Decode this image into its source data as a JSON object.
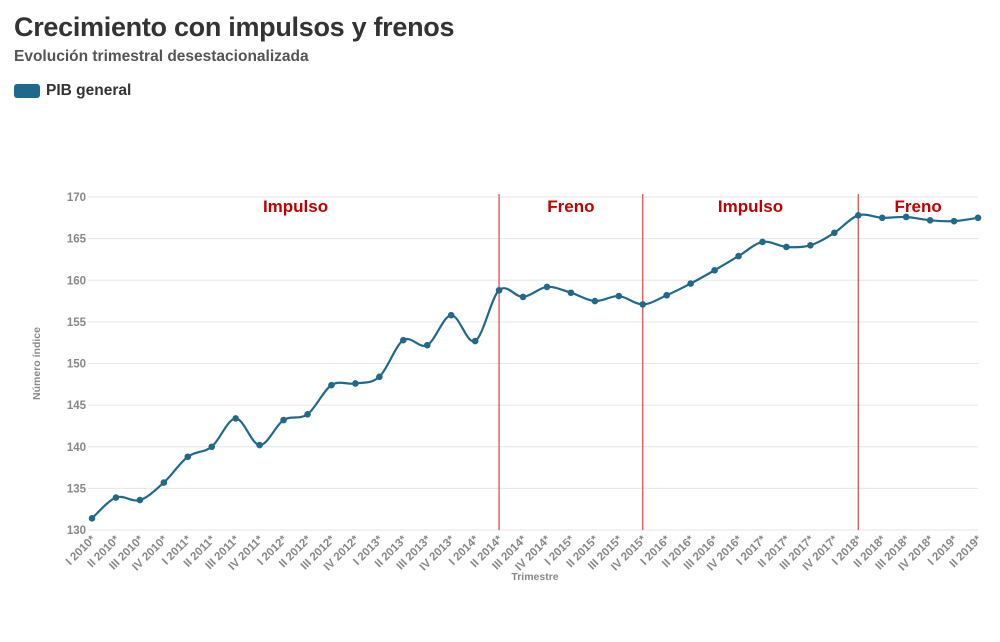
{
  "chart_data": {
    "type": "line",
    "title": "Crecimiento con impulsos y frenos",
    "subtitle": "Evolución trimestral desestacionalizada",
    "xlabel": "Trimestre",
    "ylabel": "Número índice",
    "ylim": [
      130,
      170
    ],
    "yticks": [
      "130",
      "135",
      "140",
      "145",
      "150",
      "155",
      "160",
      "165",
      "170"
    ],
    "grid": true,
    "legend": "top-left",
    "series_color": "#1f6a8c",
    "marker_color": "#c9302c",
    "categories": [
      "I 2010*",
      "II 2010*",
      "III 2010*",
      "IV 2010*",
      "I 2011*",
      "II 2011*",
      "III 2011*",
      "IV 2011*",
      "I 2012*",
      "II 2012*",
      "III 2012*",
      "IV 2012*",
      "I 2013*",
      "II 2013*",
      "III 2013*",
      "IV 2013*",
      "I 2014*",
      "II 2014*",
      "III 2014*",
      "IV 2014*",
      "I 2015*",
      "II 2015*",
      "III 2015*",
      "IV 2015*",
      "I 2016*",
      "II 2016*",
      "III 2016*",
      "IV 2016*",
      "I 2017*",
      "II 2017*",
      "III 2017*",
      "IV 2017*",
      "I 2018*",
      "II 2018*",
      "III 2018*",
      "IV 2018*",
      "I 2019*",
      "II 2019*"
    ],
    "series": [
      {
        "name": "PIB general",
        "values": [
          131.4,
          133.9,
          133.6,
          135.7,
          138.8,
          140.0,
          143.4,
          140.2,
          143.2,
          143.9,
          147.4,
          147.6,
          148.4,
          152.8,
          152.2,
          155.8,
          152.7,
          158.8,
          158.0,
          159.2,
          158.5,
          157.5,
          158.1,
          157.1,
          158.2,
          159.6,
          161.2,
          162.9,
          164.6,
          164.0,
          164.2,
          165.7,
          167.8,
          167.5,
          167.6,
          167.2,
          167.1,
          167.5
        ]
      }
    ],
    "period_dividers": [
      "II 2014*",
      "IV 2015*",
      "I 2018*"
    ],
    "periods": [
      {
        "label": "Impulso",
        "from": "I 2010*",
        "to": "II 2014*"
      },
      {
        "label": "Freno",
        "from": "II 2014*",
        "to": "IV 2015*"
      },
      {
        "label": "Impulso",
        "from": "IV 2015*",
        "to": "I 2018*"
      },
      {
        "label": "Freno",
        "from": "I 2018*",
        "to": "II 2019*"
      }
    ]
  }
}
